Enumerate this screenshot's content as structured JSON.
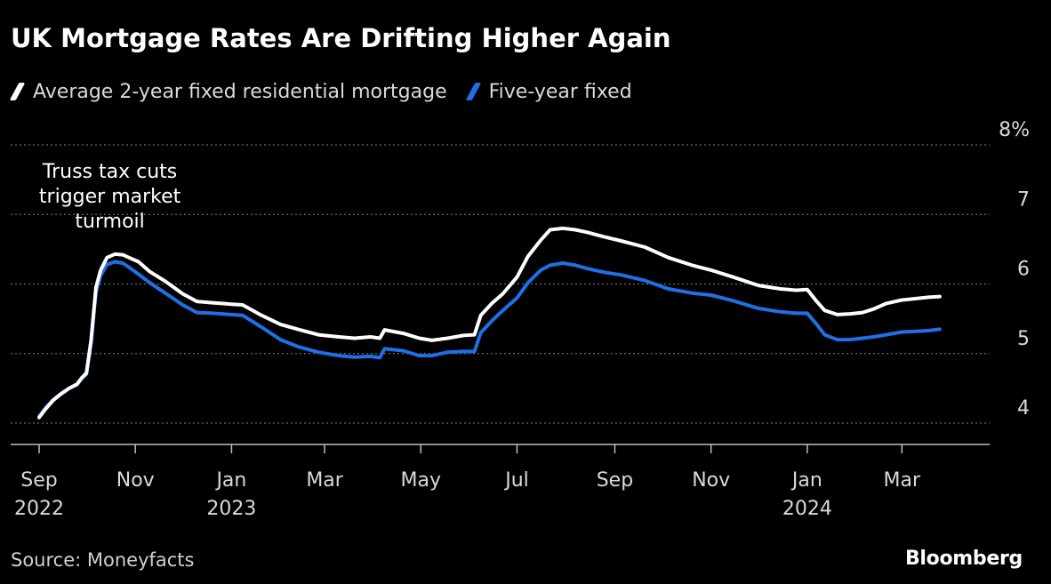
{
  "header": {
    "title": "UK Mortgage Rates Are Drifting Higher Again"
  },
  "legend": [
    {
      "label": "Average 2-year fixed residential mortgage",
      "color": "#ffffff"
    },
    {
      "label": "Five-year fixed",
      "color": "#1f6fe6"
    }
  ],
  "footer": {
    "source": "Source: Moneyfacts",
    "brand": "Bloomberg"
  },
  "chart_data": {
    "type": "line",
    "title": "UK Mortgage Rates Are Drifting Higher Again",
    "xlabel": "",
    "ylabel": "",
    "xlim": [
      "2022-09-01",
      "2024-04-20"
    ],
    "ylim": [
      3.7,
      8.0
    ],
    "y_ticks": [
      {
        "value": 4,
        "label": "4"
      },
      {
        "value": 5,
        "label": "5"
      },
      {
        "value": 6,
        "label": "6"
      },
      {
        "value": 7,
        "label": "7"
      },
      {
        "value": 8,
        "label": "8%"
      }
    ],
    "x_ticks": [
      {
        "date": "2022-09-01",
        "label": "Sep",
        "sublabel": "2022"
      },
      {
        "date": "2022-11-01",
        "label": "Nov",
        "sublabel": ""
      },
      {
        "date": "2023-01-01",
        "label": "Jan",
        "sublabel": "2023"
      },
      {
        "date": "2023-03-01",
        "label": "Mar",
        "sublabel": ""
      },
      {
        "date": "2023-05-01",
        "label": "May",
        "sublabel": ""
      },
      {
        "date": "2023-07-01",
        "label": "Jul",
        "sublabel": ""
      },
      {
        "date": "2023-09-01",
        "label": "Sep",
        "sublabel": ""
      },
      {
        "date": "2023-11-01",
        "label": "Nov",
        "sublabel": ""
      },
      {
        "date": "2024-01-01",
        "label": "Jan",
        "sublabel": "2024"
      },
      {
        "date": "2024-03-01",
        "label": "Mar",
        "sublabel": ""
      }
    ],
    "grid": true,
    "legend_position": "top-left",
    "annotations": [
      {
        "lines": [
          "Truss tax cuts",
          "trigger market",
          "turmoil"
        ],
        "date": "2022-10-17",
        "value": 7.55
      }
    ],
    "series": [
      {
        "name": "Average 2-year fixed residential mortgage",
        "color": "#ffffff",
        "points": [
          [
            "2022-09-01",
            4.08
          ],
          [
            "2022-09-05",
            4.2
          ],
          [
            "2022-09-10",
            4.33
          ],
          [
            "2022-09-15",
            4.42
          ],
          [
            "2022-09-20",
            4.5
          ],
          [
            "2022-09-25",
            4.56
          ],
          [
            "2022-09-28",
            4.65
          ],
          [
            "2022-10-01",
            4.72
          ],
          [
            "2022-10-04",
            5.2
          ],
          [
            "2022-10-07",
            5.95
          ],
          [
            "2022-10-10",
            6.2
          ],
          [
            "2022-10-14",
            6.38
          ],
          [
            "2022-10-19",
            6.43
          ],
          [
            "2022-10-24",
            6.42
          ],
          [
            "2022-10-28",
            6.38
          ],
          [
            "2022-11-03",
            6.32
          ],
          [
            "2022-11-10",
            6.18
          ],
          [
            "2022-11-20",
            6.04
          ],
          [
            "2022-12-01",
            5.86
          ],
          [
            "2022-12-10",
            5.75
          ],
          [
            "2022-12-20",
            5.73
          ],
          [
            "2023-01-01",
            5.71
          ],
          [
            "2023-01-08",
            5.7
          ],
          [
            "2023-01-20",
            5.55
          ],
          [
            "2023-02-01",
            5.42
          ],
          [
            "2023-02-12",
            5.35
          ],
          [
            "2023-02-25",
            5.27
          ],
          [
            "2023-03-10",
            5.24
          ],
          [
            "2023-03-20",
            5.22
          ],
          [
            "2023-03-30",
            5.24
          ],
          [
            "2023-04-05",
            5.22
          ],
          [
            "2023-04-08",
            5.34
          ],
          [
            "2023-04-20",
            5.29
          ],
          [
            "2023-04-30",
            5.22
          ],
          [
            "2023-05-08",
            5.19
          ],
          [
            "2023-05-18",
            5.22
          ],
          [
            "2023-05-28",
            5.26
          ],
          [
            "2023-06-04",
            5.27
          ],
          [
            "2023-06-08",
            5.55
          ],
          [
            "2023-06-15",
            5.72
          ],
          [
            "2023-06-22",
            5.86
          ],
          [
            "2023-07-01",
            6.1
          ],
          [
            "2023-07-08",
            6.4
          ],
          [
            "2023-07-16",
            6.63
          ],
          [
            "2023-07-22",
            6.78
          ],
          [
            "2023-07-30",
            6.8
          ],
          [
            "2023-08-07",
            6.78
          ],
          [
            "2023-08-15",
            6.74
          ],
          [
            "2023-08-25",
            6.68
          ],
          [
            "2023-09-05",
            6.62
          ],
          [
            "2023-09-20",
            6.53
          ],
          [
            "2023-10-05",
            6.38
          ],
          [
            "2023-10-20",
            6.27
          ],
          [
            "2023-11-01",
            6.2
          ],
          [
            "2023-11-15",
            6.1
          ],
          [
            "2023-12-01",
            5.98
          ],
          [
            "2023-12-15",
            5.93
          ],
          [
            "2023-12-25",
            5.91
          ],
          [
            "2024-01-01",
            5.92
          ],
          [
            "2024-01-07",
            5.75
          ],
          [
            "2024-01-12",
            5.62
          ],
          [
            "2024-01-20",
            5.56
          ],
          [
            "2024-01-28",
            5.57
          ],
          [
            "2024-02-05",
            5.59
          ],
          [
            "2024-02-12",
            5.64
          ],
          [
            "2024-02-20",
            5.72
          ],
          [
            "2024-03-01",
            5.77
          ],
          [
            "2024-03-10",
            5.79
          ],
          [
            "2024-03-18",
            5.81
          ],
          [
            "2024-03-25",
            5.82
          ]
        ]
      },
      {
        "name": "Five-year fixed",
        "color": "#1f6fe6",
        "points": [
          [
            "2022-09-01",
            4.1
          ],
          [
            "2022-09-05",
            4.22
          ],
          [
            "2022-09-10",
            4.34
          ],
          [
            "2022-09-15",
            4.43
          ],
          [
            "2022-09-20",
            4.5
          ],
          [
            "2022-09-25",
            4.55
          ],
          [
            "2022-09-28",
            4.64
          ],
          [
            "2022-10-01",
            4.7
          ],
          [
            "2022-10-04",
            5.15
          ],
          [
            "2022-10-07",
            5.88
          ],
          [
            "2022-10-10",
            6.12
          ],
          [
            "2022-10-14",
            6.28
          ],
          [
            "2022-10-19",
            6.32
          ],
          [
            "2022-10-24",
            6.3
          ],
          [
            "2022-10-28",
            6.24
          ],
          [
            "2022-11-03",
            6.14
          ],
          [
            "2022-11-10",
            6.02
          ],
          [
            "2022-11-20",
            5.87
          ],
          [
            "2022-12-01",
            5.7
          ],
          [
            "2022-12-10",
            5.59
          ],
          [
            "2022-12-20",
            5.58
          ],
          [
            "2023-01-01",
            5.56
          ],
          [
            "2023-01-08",
            5.55
          ],
          [
            "2023-01-20",
            5.38
          ],
          [
            "2023-02-01",
            5.2
          ],
          [
            "2023-02-12",
            5.1
          ],
          [
            "2023-02-25",
            5.02
          ],
          [
            "2023-03-10",
            4.97
          ],
          [
            "2023-03-20",
            4.95
          ],
          [
            "2023-03-30",
            4.96
          ],
          [
            "2023-04-05",
            4.94
          ],
          [
            "2023-04-08",
            5.07
          ],
          [
            "2023-04-20",
            5.04
          ],
          [
            "2023-04-30",
            4.97
          ],
          [
            "2023-05-08",
            4.97
          ],
          [
            "2023-05-18",
            5.02
          ],
          [
            "2023-05-28",
            5.03
          ],
          [
            "2023-06-04",
            5.03
          ],
          [
            "2023-06-08",
            5.3
          ],
          [
            "2023-06-15",
            5.47
          ],
          [
            "2023-06-22",
            5.62
          ],
          [
            "2023-07-01",
            5.8
          ],
          [
            "2023-07-08",
            6.02
          ],
          [
            "2023-07-16",
            6.2
          ],
          [
            "2023-07-22",
            6.27
          ],
          [
            "2023-07-30",
            6.3
          ],
          [
            "2023-08-07",
            6.27
          ],
          [
            "2023-08-15",
            6.22
          ],
          [
            "2023-08-25",
            6.17
          ],
          [
            "2023-09-05",
            6.13
          ],
          [
            "2023-09-20",
            6.05
          ],
          [
            "2023-10-05",
            5.93
          ],
          [
            "2023-10-20",
            5.87
          ],
          [
            "2023-11-01",
            5.84
          ],
          [
            "2023-11-15",
            5.76
          ],
          [
            "2023-12-01",
            5.65
          ],
          [
            "2023-12-15",
            5.6
          ],
          [
            "2023-12-25",
            5.58
          ],
          [
            "2024-01-01",
            5.58
          ],
          [
            "2024-01-07",
            5.42
          ],
          [
            "2024-01-12",
            5.27
          ],
          [
            "2024-01-20",
            5.2
          ],
          [
            "2024-01-28",
            5.2
          ],
          [
            "2024-02-05",
            5.22
          ],
          [
            "2024-02-12",
            5.24
          ],
          [
            "2024-02-20",
            5.27
          ],
          [
            "2024-03-01",
            5.31
          ],
          [
            "2024-03-10",
            5.32
          ],
          [
            "2024-03-18",
            5.33
          ],
          [
            "2024-03-25",
            5.35
          ]
        ]
      }
    ]
  }
}
